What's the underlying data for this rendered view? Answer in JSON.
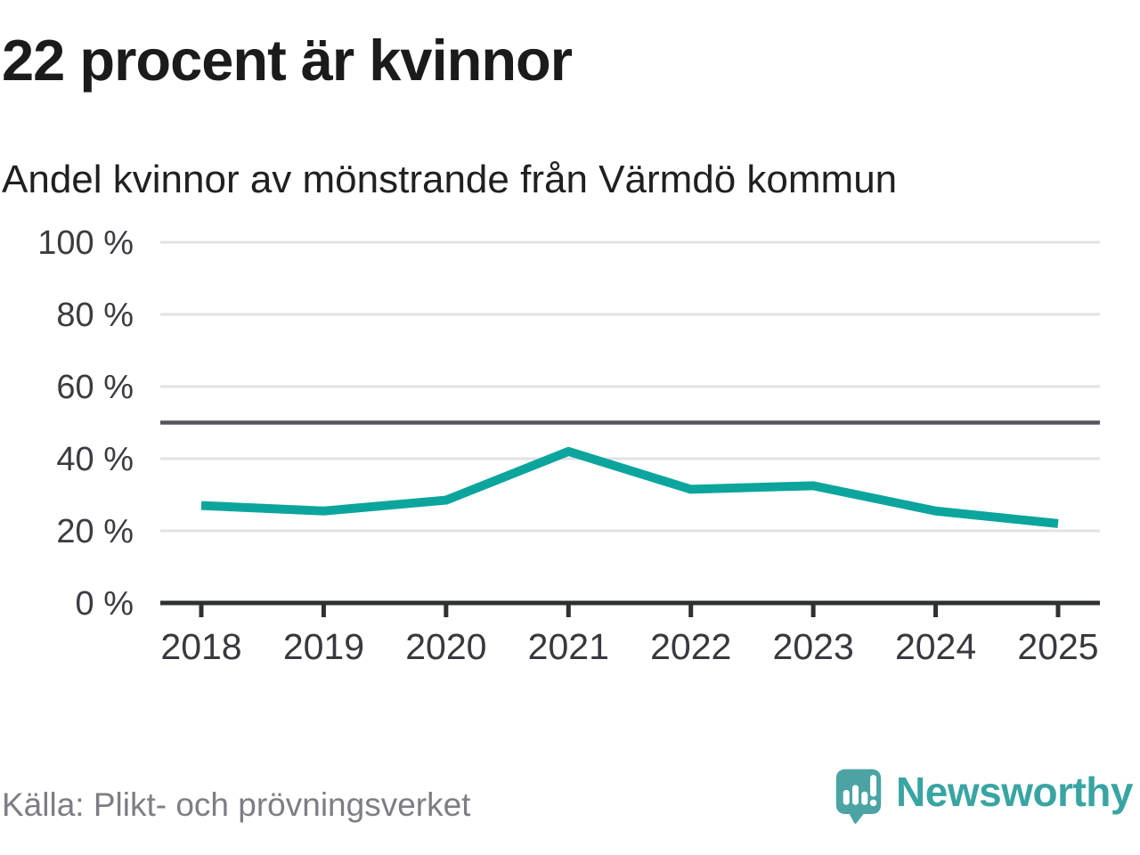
{
  "chart_data": {
    "type": "line",
    "title": "22 procent är kvinnor",
    "subtitle": "Andel kvinnor av mönstrande från Värmdö kommun",
    "source": "Källa: Plikt- och prövningsverket",
    "categories": [
      "2018",
      "2019",
      "2020",
      "2021",
      "2022",
      "2023",
      "2024",
      "2025"
    ],
    "series": [
      {
        "name": "Andel kvinnor av mönstrande",
        "values": [
          27,
          25.5,
          28.5,
          42,
          31.5,
          32.5,
          25.5,
          22
        ]
      }
    ],
    "unit": "%",
    "ylim": [
      0,
      100
    ],
    "yticks": [
      0,
      20,
      40,
      60,
      80,
      100
    ],
    "ytick_labels": [
      "0 %",
      "20 %",
      "40 %",
      "60 %",
      "80 %",
      "100 %"
    ],
    "reference_line_y": 50,
    "grid": true,
    "legend": false
  },
  "branding": {
    "name": "Newsworthy",
    "icon": "speech-bubble-bar-chart-icon"
  },
  "colors": {
    "line": "#0ca59d",
    "gridline": "#e2e2e4",
    "reference_line": "#55565e",
    "axis": "#2f3034",
    "logo_mark": "#4ba4a3",
    "brand_text": "#39a5a3",
    "background": "#ffffff"
  }
}
